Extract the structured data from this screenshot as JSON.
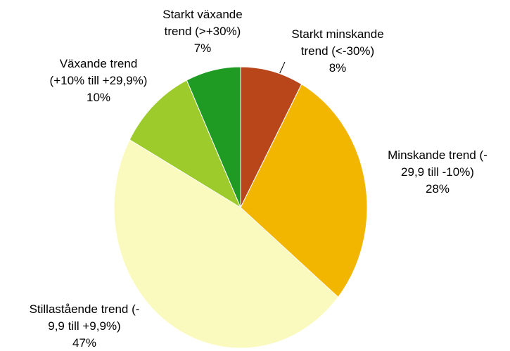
{
  "chart_data": {
    "type": "pie",
    "categories": [
      "Starkt minskande\ntrend (<-30%)",
      "Minskande trend (-\n29,9 till -10%)",
      "Stillastående trend (-\n9,9 till +9,9%)",
      "Växande trend\n(+10% till +29,9%)",
      "Starkt växande\ntrend (>+30%)"
    ],
    "values": [
      8,
      28,
      47,
      10,
      7
    ],
    "value_labels": [
      "8%",
      "28%",
      "47%",
      "10%",
      "7%"
    ],
    "colors": [
      "#b8461a",
      "#f2b600",
      "#fafabf",
      "#9dcb2c",
      "#1f9a22"
    ]
  }
}
